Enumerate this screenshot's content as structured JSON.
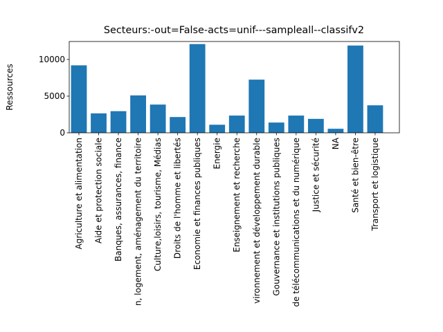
{
  "chart_data": {
    "type": "bar",
    "title": "Secteurs:-out=False-acts=unif---sampleall--classifv2",
    "y_label": "Ressources",
    "categories": [
      "Agriculture et alimentation",
      "Aide et protection sociale",
      "Banques, assurances, finance",
      "n, logement, aménagement du territoire",
      "Culture,loisirs, tourisme, Médias",
      "Droits de l'homme et libertés",
      "Economie et finances publiques",
      "Energie",
      "Enseignement et recherche",
      "vironnement et développement durable",
      "Gouvernance et institutions publiques",
      "de télécommunications et du numérique",
      "Justice et sécurité",
      "NA",
      "Santé et bien-être",
      "Transport et logistique"
    ],
    "values": [
      9200,
      2650,
      2950,
      5100,
      3850,
      2150,
      12100,
      1100,
      2350,
      7250,
      1400,
      2350,
      1900,
      550,
      11900,
      3750
    ],
    "color": "#1f77b4",
    "ylim": [
      0,
      12450
    ],
    "yticks": [
      0,
      5000,
      10000
    ]
  }
}
